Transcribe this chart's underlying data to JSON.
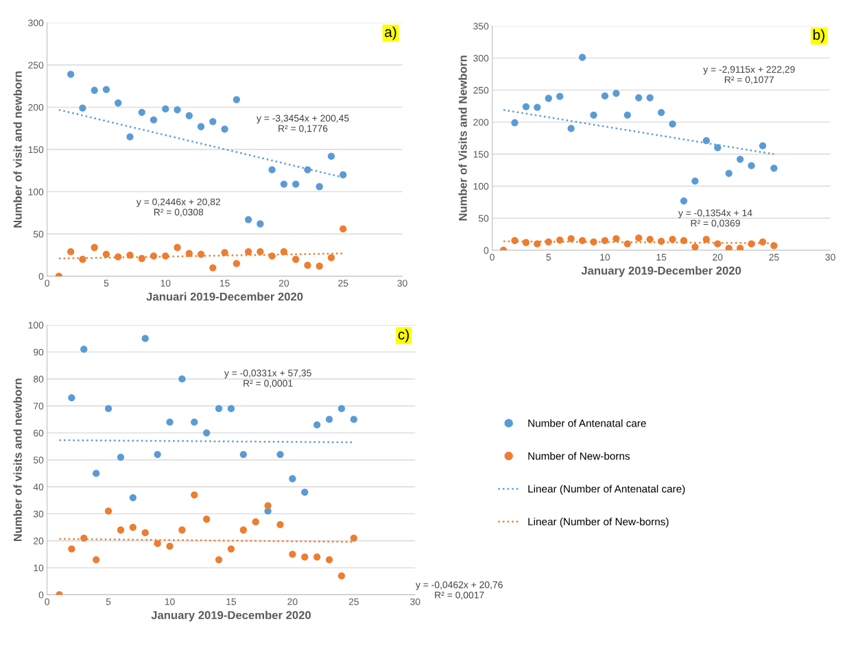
{
  "chart_data": [
    {
      "type": "scatter",
      "xlabel": "Januari 2019-December 2020",
      "ylabel": "Number of visit and newborn",
      "xlim": [
        0,
        30
      ],
      "xticks": [
        0,
        5,
        10,
        15,
        20,
        25,
        30
      ],
      "ylim": [
        0,
        300
      ],
      "yticks": [
        0,
        50,
        100,
        150,
        200,
        250,
        300
      ],
      "grid": "y",
      "legend": false,
      "annotations": [
        "a)",
        "y = -3,3454x + 200,45\nR² = 0,1776",
        "y = 0,2446x + 20,82\nR² = 0,0308"
      ],
      "series": [
        {
          "type": "scatter",
          "marker": "circle",
          "color": "#5b9bd5",
          "x": [
            2,
            3,
            4,
            5,
            6,
            7,
            8,
            9,
            10,
            11,
            12,
            13,
            14,
            15,
            16,
            17,
            18,
            19,
            20,
            21,
            22,
            23,
            24,
            25
          ],
          "values": [
            239,
            199,
            220,
            221,
            205,
            165,
            194,
            185,
            198,
            197,
            190,
            177,
            183,
            174,
            209,
            67,
            62,
            126,
            109,
            109,
            126,
            106,
            142,
            120
          ]
        },
        {
          "type": "scatter",
          "marker": "circle",
          "color": "#ed7d31",
          "x": [
            1,
            2,
            3,
            4,
            5,
            6,
            7,
            8,
            9,
            10,
            11,
            12,
            13,
            14,
            15,
            16,
            17,
            18,
            19,
            20,
            21,
            22,
            23,
            24,
            25
          ],
          "values": [
            0,
            29,
            20,
            34,
            26,
            23,
            25,
            21,
            24,
            24,
            34,
            27,
            26,
            10,
            28,
            15,
            29,
            29,
            24,
            29,
            20,
            13,
            12,
            22,
            56
          ]
        },
        {
          "type": "line",
          "marker": "none",
          "line_style": "dotted",
          "color": "#5b9bd5",
          "x": [
            1,
            25
          ],
          "values": [
            197,
            117
          ]
        },
        {
          "type": "line",
          "marker": "none",
          "line_style": "dotted",
          "color": "#ed7d31",
          "x": [
            1,
            25
          ],
          "values": [
            21,
            27
          ]
        }
      ]
    },
    {
      "type": "scatter",
      "xlabel": "January 2019-December 2020",
      "ylabel": "Number of Visits and Newborn",
      "xlim": [
        0,
        30
      ],
      "xticks": [
        0,
        5,
        10,
        15,
        20,
        25,
        30
      ],
      "ylim": [
        0,
        350
      ],
      "yticks": [
        0,
        50,
        100,
        150,
        200,
        250,
        300,
        350
      ],
      "grid": "y",
      "legend": false,
      "annotations": [
        "b)",
        "y = -2,9115x + 222,29\nR² = 0,1077",
        "y = -0,1354x + 14\nR² = 0,0369"
      ],
      "series": [
        {
          "type": "scatter",
          "marker": "circle",
          "color": "#5b9bd5",
          "x": [
            2,
            3,
            4,
            5,
            6,
            7,
            8,
            9,
            10,
            11,
            12,
            13,
            14,
            15,
            16,
            17,
            18,
            19,
            20,
            21,
            22,
            23,
            24,
            25
          ],
          "values": [
            199,
            224,
            223,
            237,
            240,
            190,
            301,
            211,
            241,
            245,
            211,
            238,
            238,
            215,
            197,
            77,
            108,
            171,
            160,
            120,
            142,
            132,
            163,
            128
          ]
        },
        {
          "type": "scatter",
          "marker": "circle",
          "color": "#ed7d31",
          "x": [
            1,
            2,
            3,
            4,
            5,
            6,
            7,
            8,
            9,
            10,
            11,
            12,
            13,
            14,
            15,
            16,
            17,
            18,
            19,
            20,
            21,
            22,
            23,
            24,
            25
          ],
          "values": [
            0,
            15,
            12,
            10,
            13,
            16,
            18,
            15,
            13,
            15,
            18,
            10,
            19,
            17,
            14,
            17,
            15,
            5,
            17,
            10,
            3,
            3,
            10,
            13,
            7
          ]
        },
        {
          "type": "line",
          "marker": "none",
          "line_style": "dotted",
          "color": "#5b9bd5",
          "x": [
            1,
            25
          ],
          "values": [
            219,
            150
          ]
        },
        {
          "type": "line",
          "marker": "none",
          "line_style": "dotted",
          "color": "#ed7d31",
          "x": [
            1,
            25
          ],
          "values": [
            14,
            11
          ]
        }
      ]
    },
    {
      "type": "scatter",
      "xlabel": "January 2019-December 2020",
      "ylabel": "Number of visits and newborn",
      "xlim": [
        0,
        30
      ],
      "xticks": [
        0,
        5,
        10,
        15,
        20,
        25,
        30
      ],
      "ylim": [
        0,
        100
      ],
      "yticks": [
        0,
        10,
        20,
        30,
        40,
        50,
        60,
        70,
        80,
        90,
        100
      ],
      "grid": "y",
      "legend": "right",
      "annotations": [
        "c)",
        "y = -0,0331x + 57,35\nR² = 0,0001",
        "y = -0,0462x + 20,76\nR² = 0,0017"
      ],
      "series": [
        {
          "type": "scatter",
          "marker": "circle",
          "name": "Number of Antenatal care",
          "color": "#5b9bd5",
          "x": [
            2,
            3,
            4,
            5,
            6,
            7,
            8,
            9,
            10,
            11,
            12,
            13,
            14,
            15,
            16,
            18,
            19,
            20,
            21,
            22,
            23,
            24,
            25
          ],
          "values": [
            73,
            91,
            45,
            69,
            51,
            36,
            95,
            52,
            64,
            80,
            64,
            60,
            69,
            69,
            52,
            31,
            52,
            43,
            38,
            63,
            65,
            69,
            65
          ]
        },
        {
          "type": "scatter",
          "marker": "circle",
          "name": "Number of New-borns",
          "color": "#ed7d31",
          "x": [
            1,
            2,
            3,
            4,
            5,
            6,
            7,
            8,
            9,
            10,
            11,
            12,
            13,
            14,
            15,
            16,
            17,
            18,
            19,
            20,
            21,
            22,
            23,
            24,
            25
          ],
          "values": [
            0,
            17,
            21,
            13,
            31,
            24,
            25,
            23,
            19,
            18,
            24,
            37,
            28,
            13,
            17,
            24,
            27,
            33,
            26,
            15,
            14,
            14,
            13,
            7,
            21
          ]
        },
        {
          "type": "line",
          "marker": "none",
          "line_style": "dotted",
          "name": "Linear (Number of Antenatal care)",
          "color": "#5b9bd5",
          "x": [
            1,
            25
          ],
          "values": [
            57.3,
            56.5
          ]
        },
        {
          "type": "line",
          "marker": "none",
          "line_style": "dotted",
          "name": "Linear (Number of New-borns)",
          "color": "#ed7d31",
          "x": [
            1,
            25
          ],
          "values": [
            20.7,
            19.6
          ]
        }
      ]
    }
  ]
}
